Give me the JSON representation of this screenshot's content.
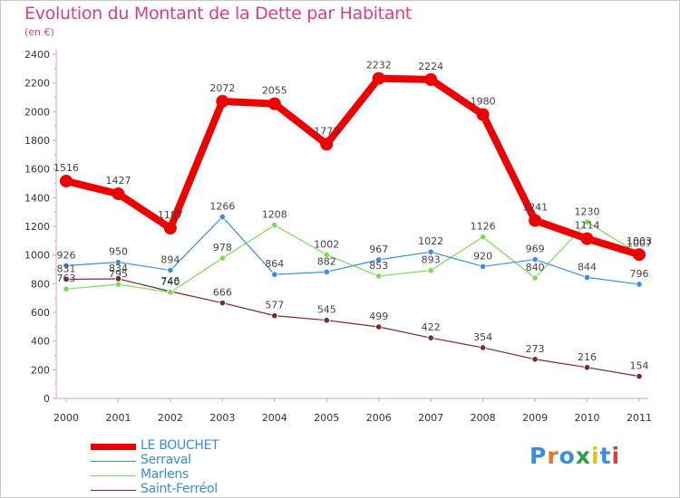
{
  "title": "Evolution du Montant de la Dette par Habitant",
  "subtitle": "(en €)",
  "logo": {
    "text": "Proxiti",
    "colors": [
      "#3a8edb",
      "#e07a2a",
      "#3a8edb",
      "#2aa04a",
      "#e0c020",
      "#3a8edb",
      "#d64040"
    ]
  },
  "chart_data": {
    "type": "line",
    "title": "Evolution du Montant de la Dette par Habitant",
    "ylabel": "(en €)",
    "x": [
      "2000",
      "2001",
      "2002",
      "2003",
      "2004",
      "2005",
      "2006",
      "2007",
      "2008",
      "2009",
      "2010",
      "2011"
    ],
    "ylim": [
      0,
      2400
    ],
    "yticks": [
      0,
      200,
      400,
      600,
      800,
      1000,
      1200,
      1400,
      1600,
      1800,
      2000,
      2200,
      2400
    ],
    "grid": false,
    "legend_position": "bottom-left",
    "series": [
      {
        "name": "LE BOUCHET",
        "color": "#ee0000",
        "values": [
          1516,
          1427,
          1187,
          2072,
          2055,
          1773,
          2232,
          2224,
          1980,
          1241,
          1114,
          1003
        ]
      },
      {
        "name": "Serraval",
        "color": "#3a8edb",
        "values": [
          926,
          950,
          894,
          1266,
          864,
          882,
          967,
          1022,
          920,
          969,
          844,
          796
        ]
      },
      {
        "name": "Marlens",
        "color": "#7ed957",
        "values": [
          763,
          795,
          740,
          978,
          1208,
          1002,
          853,
          893,
          1126,
          840,
          1230,
          1007
        ]
      },
      {
        "name": "Saint-Ferréol",
        "color": "#7a2a2a",
        "values": [
          831,
          834,
          746,
          666,
          577,
          545,
          499,
          422,
          354,
          273,
          216,
          154
        ]
      }
    ]
  }
}
